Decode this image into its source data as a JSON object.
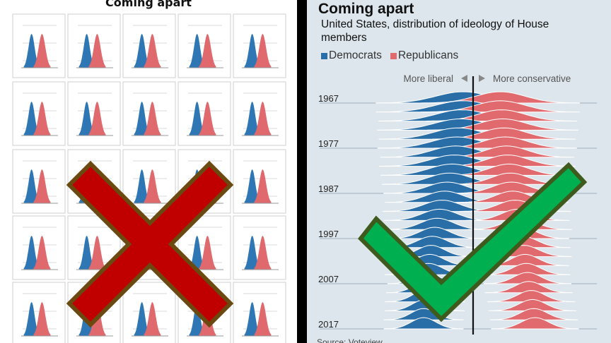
{
  "left_panel": {
    "title": "Coming apart",
    "rows": 5,
    "cols": 5,
    "dem_color": "#2f77b4",
    "rep_color": "#e0696e",
    "mark": "cross-mark",
    "mark_color": "#c00000"
  },
  "right_panel": {
    "title": "Coming apart",
    "subtitle": "United States, distribution of ideology of House members",
    "legend": [
      {
        "label": "Democrats",
        "color": "#2a6ea8"
      },
      {
        "label": "Republicans",
        "color": "#e06a6e"
      }
    ],
    "axis_left_label": "More liberal",
    "axis_right_label": "More conservative",
    "footer": "Source: Voteview",
    "mark": "check-mark",
    "mark_color": "#00b050"
  },
  "chart_data": {
    "type": "ridgeline",
    "x": [
      1967,
      1969,
      1971,
      1973,
      1975,
      1977,
      1979,
      1981,
      1983,
      1985,
      1987,
      1989,
      1991,
      1993,
      1995,
      1997,
      1999,
      2001,
      2003,
      2005,
      2007,
      2009,
      2011,
      2013,
      2015,
      2017
    ],
    "year_labels": [
      "1967",
      "1977",
      "1987",
      "1997",
      "2007",
      "2017"
    ],
    "series": [
      {
        "name": "Democrats",
        "mean": [
          -0.08,
          -0.08,
          -0.09,
          -0.1,
          -0.12,
          -0.13,
          -0.14,
          -0.15,
          -0.17,
          -0.19,
          -0.21,
          -0.23,
          -0.25,
          -0.27,
          -0.29,
          -0.31,
          -0.33,
          -0.34,
          -0.35,
          -0.36,
          -0.37,
          -0.38,
          -0.39,
          -0.39,
          -0.4,
          -0.4
        ],
        "sd": [
          0.22,
          0.22,
          0.21,
          0.21,
          0.2,
          0.2,
          0.19,
          0.19,
          0.18,
          0.17,
          0.16,
          0.15,
          0.15,
          0.14,
          0.13,
          0.12,
          0.12,
          0.11,
          0.11,
          0.11,
          0.1,
          0.1,
          0.1,
          0.1,
          0.1,
          0.1
        ]
      },
      {
        "name": "Republicans",
        "mean": [
          0.22,
          0.22,
          0.23,
          0.24,
          0.25,
          0.26,
          0.27,
          0.28,
          0.29,
          0.3,
          0.31,
          0.32,
          0.34,
          0.36,
          0.38,
          0.39,
          0.4,
          0.41,
          0.42,
          0.43,
          0.44,
          0.45,
          0.47,
          0.48,
          0.49,
          0.5
        ],
        "sd": [
          0.2,
          0.2,
          0.19,
          0.19,
          0.18,
          0.18,
          0.17,
          0.17,
          0.16,
          0.15,
          0.15,
          0.14,
          0.14,
          0.13,
          0.13,
          0.12,
          0.12,
          0.12,
          0.11,
          0.11,
          0.11,
          0.11,
          0.11,
          0.11,
          0.11,
          0.11
        ]
      }
    ],
    "xlim": [
      -1,
      1
    ],
    "divider_at": 0
  }
}
